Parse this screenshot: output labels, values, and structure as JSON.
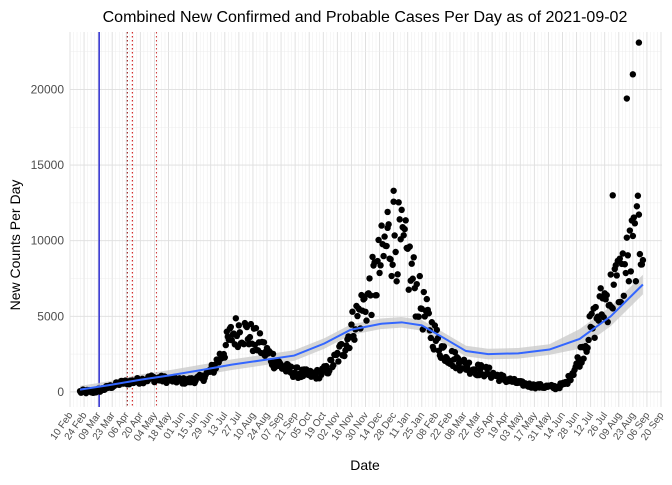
{
  "chart_data": {
    "type": "scatter",
    "title": "Combined New Confirmed and Probable Cases Per Day as of 2021-09-02",
    "xlabel": "Date",
    "ylabel": "New Counts Per Day",
    "y_ticks": [
      0,
      5000,
      10000,
      15000,
      20000
    ],
    "ylim": [
      -1000,
      23800
    ],
    "x_ticks": [
      "10 Feb",
      "24 Feb",
      "09 Mar",
      "23 Mar",
      "06 Apr",
      "20 Apr",
      "04 May",
      "18 May",
      "01 Jun",
      "15 Jun",
      "29 Jun",
      "13 Jul",
      "27 Jul",
      "10 Aug",
      "24 Aug",
      "07 Sep",
      "21 Sep",
      "05 Oct",
      "19 Oct",
      "02 Nov",
      "16 Nov",
      "30 Nov",
      "14 Dec",
      "28 Dec",
      "11 Jan",
      "25 Jan",
      "08 Feb",
      "22 Feb",
      "08 Mar",
      "22 Mar",
      "05 Apr",
      "19 Apr",
      "03 May",
      "17 May",
      "31 May",
      "14 Jun",
      "28 Jun",
      "12 Jul",
      "26 Jul",
      "09 Aug",
      "23 Aug",
      "06 Sep",
      "20 Sep"
    ],
    "xlim": [
      "2020-02-10",
      "2021-09-21"
    ],
    "grid": true,
    "reference_lines": [
      {
        "date": "2020-03-10",
        "color": "#0000cc",
        "style": "solid"
      },
      {
        "date": "2020-04-07",
        "color": "#8b0000",
        "style": "dotted"
      },
      {
        "date": "2020-04-12",
        "color": "#cc0000",
        "style": "dotted"
      },
      {
        "date": "2020-05-06",
        "color": "#cc3333",
        "style": "dotted"
      }
    ],
    "series": [
      {
        "kind": "points",
        "color": "#000000",
        "anchors": [
          [
            "2020-02-20",
            0
          ],
          [
            "2020-03-05",
            30
          ],
          [
            "2020-03-15",
            200
          ],
          [
            "2020-04-01",
            600
          ],
          [
            "2020-04-15",
            700
          ],
          [
            "2020-05-01",
            900
          ],
          [
            "2020-05-20",
            800
          ],
          [
            "2020-06-05",
            700
          ],
          [
            "2020-06-20",
            900
          ],
          [
            "2020-07-01",
            1500
          ],
          [
            "2020-07-10",
            2500
          ],
          [
            "2020-07-20",
            3800
          ],
          [
            "2020-07-28",
            4200
          ],
          [
            "2020-08-05",
            3800
          ],
          [
            "2020-08-15",
            3200
          ],
          [
            "2020-08-25",
            2500
          ],
          [
            "2020-09-05",
            1800
          ],
          [
            "2020-09-15",
            1400
          ],
          [
            "2020-09-28",
            1200
          ],
          [
            "2020-10-10",
            1100
          ],
          [
            "2020-10-22",
            1400
          ],
          [
            "2020-11-01",
            2200
          ],
          [
            "2020-11-10",
            3200
          ],
          [
            "2020-11-20",
            4800
          ],
          [
            "2020-12-01",
            6000
          ],
          [
            "2020-12-10",
            7500
          ],
          [
            "2020-12-20",
            9500
          ],
          [
            "2020-12-28",
            10500
          ],
          [
            "2021-01-05",
            9500
          ],
          [
            "2021-01-12",
            8500
          ],
          [
            "2021-01-20",
            6500
          ],
          [
            "2021-02-01",
            4500
          ],
          [
            "2021-02-12",
            3000
          ],
          [
            "2021-02-25",
            2200
          ],
          [
            "2021-03-08",
            1800
          ],
          [
            "2021-03-20",
            1500
          ],
          [
            "2021-04-01",
            1300
          ],
          [
            "2021-04-15",
            900
          ],
          [
            "2021-05-01",
            600
          ],
          [
            "2021-05-15",
            400
          ],
          [
            "2021-05-28",
            350
          ],
          [
            "2021-06-08",
            300
          ],
          [
            "2021-06-18",
            600
          ],
          [
            "2021-06-28",
            1800
          ],
          [
            "2021-07-08",
            3500
          ],
          [
            "2021-07-18",
            5000
          ],
          [
            "2021-07-25",
            6000
          ],
          [
            "2021-08-01",
            6500
          ],
          [
            "2021-08-10",
            7500
          ],
          [
            "2021-08-18",
            8500
          ],
          [
            "2021-08-26",
            10000
          ],
          [
            "2021-09-02",
            10500
          ]
        ],
        "outliers": [
          [
            "2021-08-03",
            13000
          ],
          [
            "2021-08-17",
            19400
          ],
          [
            "2021-08-23",
            21000
          ],
          [
            "2021-08-29",
            23100
          ],
          [
            "2020-12-28",
            13300
          ],
          [
            "2020-12-22",
            11900
          ]
        ]
      },
      {
        "kind": "smooth",
        "color": "#3366ff",
        "band_color": "#c8c8c8",
        "points": [
          [
            "2020-02-20",
            150
          ],
          [
            "2020-03-20",
            450
          ],
          [
            "2020-04-20",
            800
          ],
          [
            "2020-05-20",
            1100
          ],
          [
            "2020-06-20",
            1450
          ],
          [
            "2020-07-20",
            1800
          ],
          [
            "2020-08-20",
            2100
          ],
          [
            "2020-09-20",
            2400
          ],
          [
            "2020-10-20",
            3200
          ],
          [
            "2020-11-15",
            4100
          ],
          [
            "2020-12-15",
            4500
          ],
          [
            "2021-01-05",
            4600
          ],
          [
            "2021-01-25",
            4400
          ],
          [
            "2021-02-15",
            3600
          ],
          [
            "2021-03-10",
            2700
          ],
          [
            "2021-04-01",
            2500
          ],
          [
            "2021-05-01",
            2550
          ],
          [
            "2021-06-01",
            2800
          ],
          [
            "2021-07-01",
            3500
          ],
          [
            "2021-08-01",
            5000
          ],
          [
            "2021-09-02",
            7100
          ]
        ]
      }
    ]
  }
}
